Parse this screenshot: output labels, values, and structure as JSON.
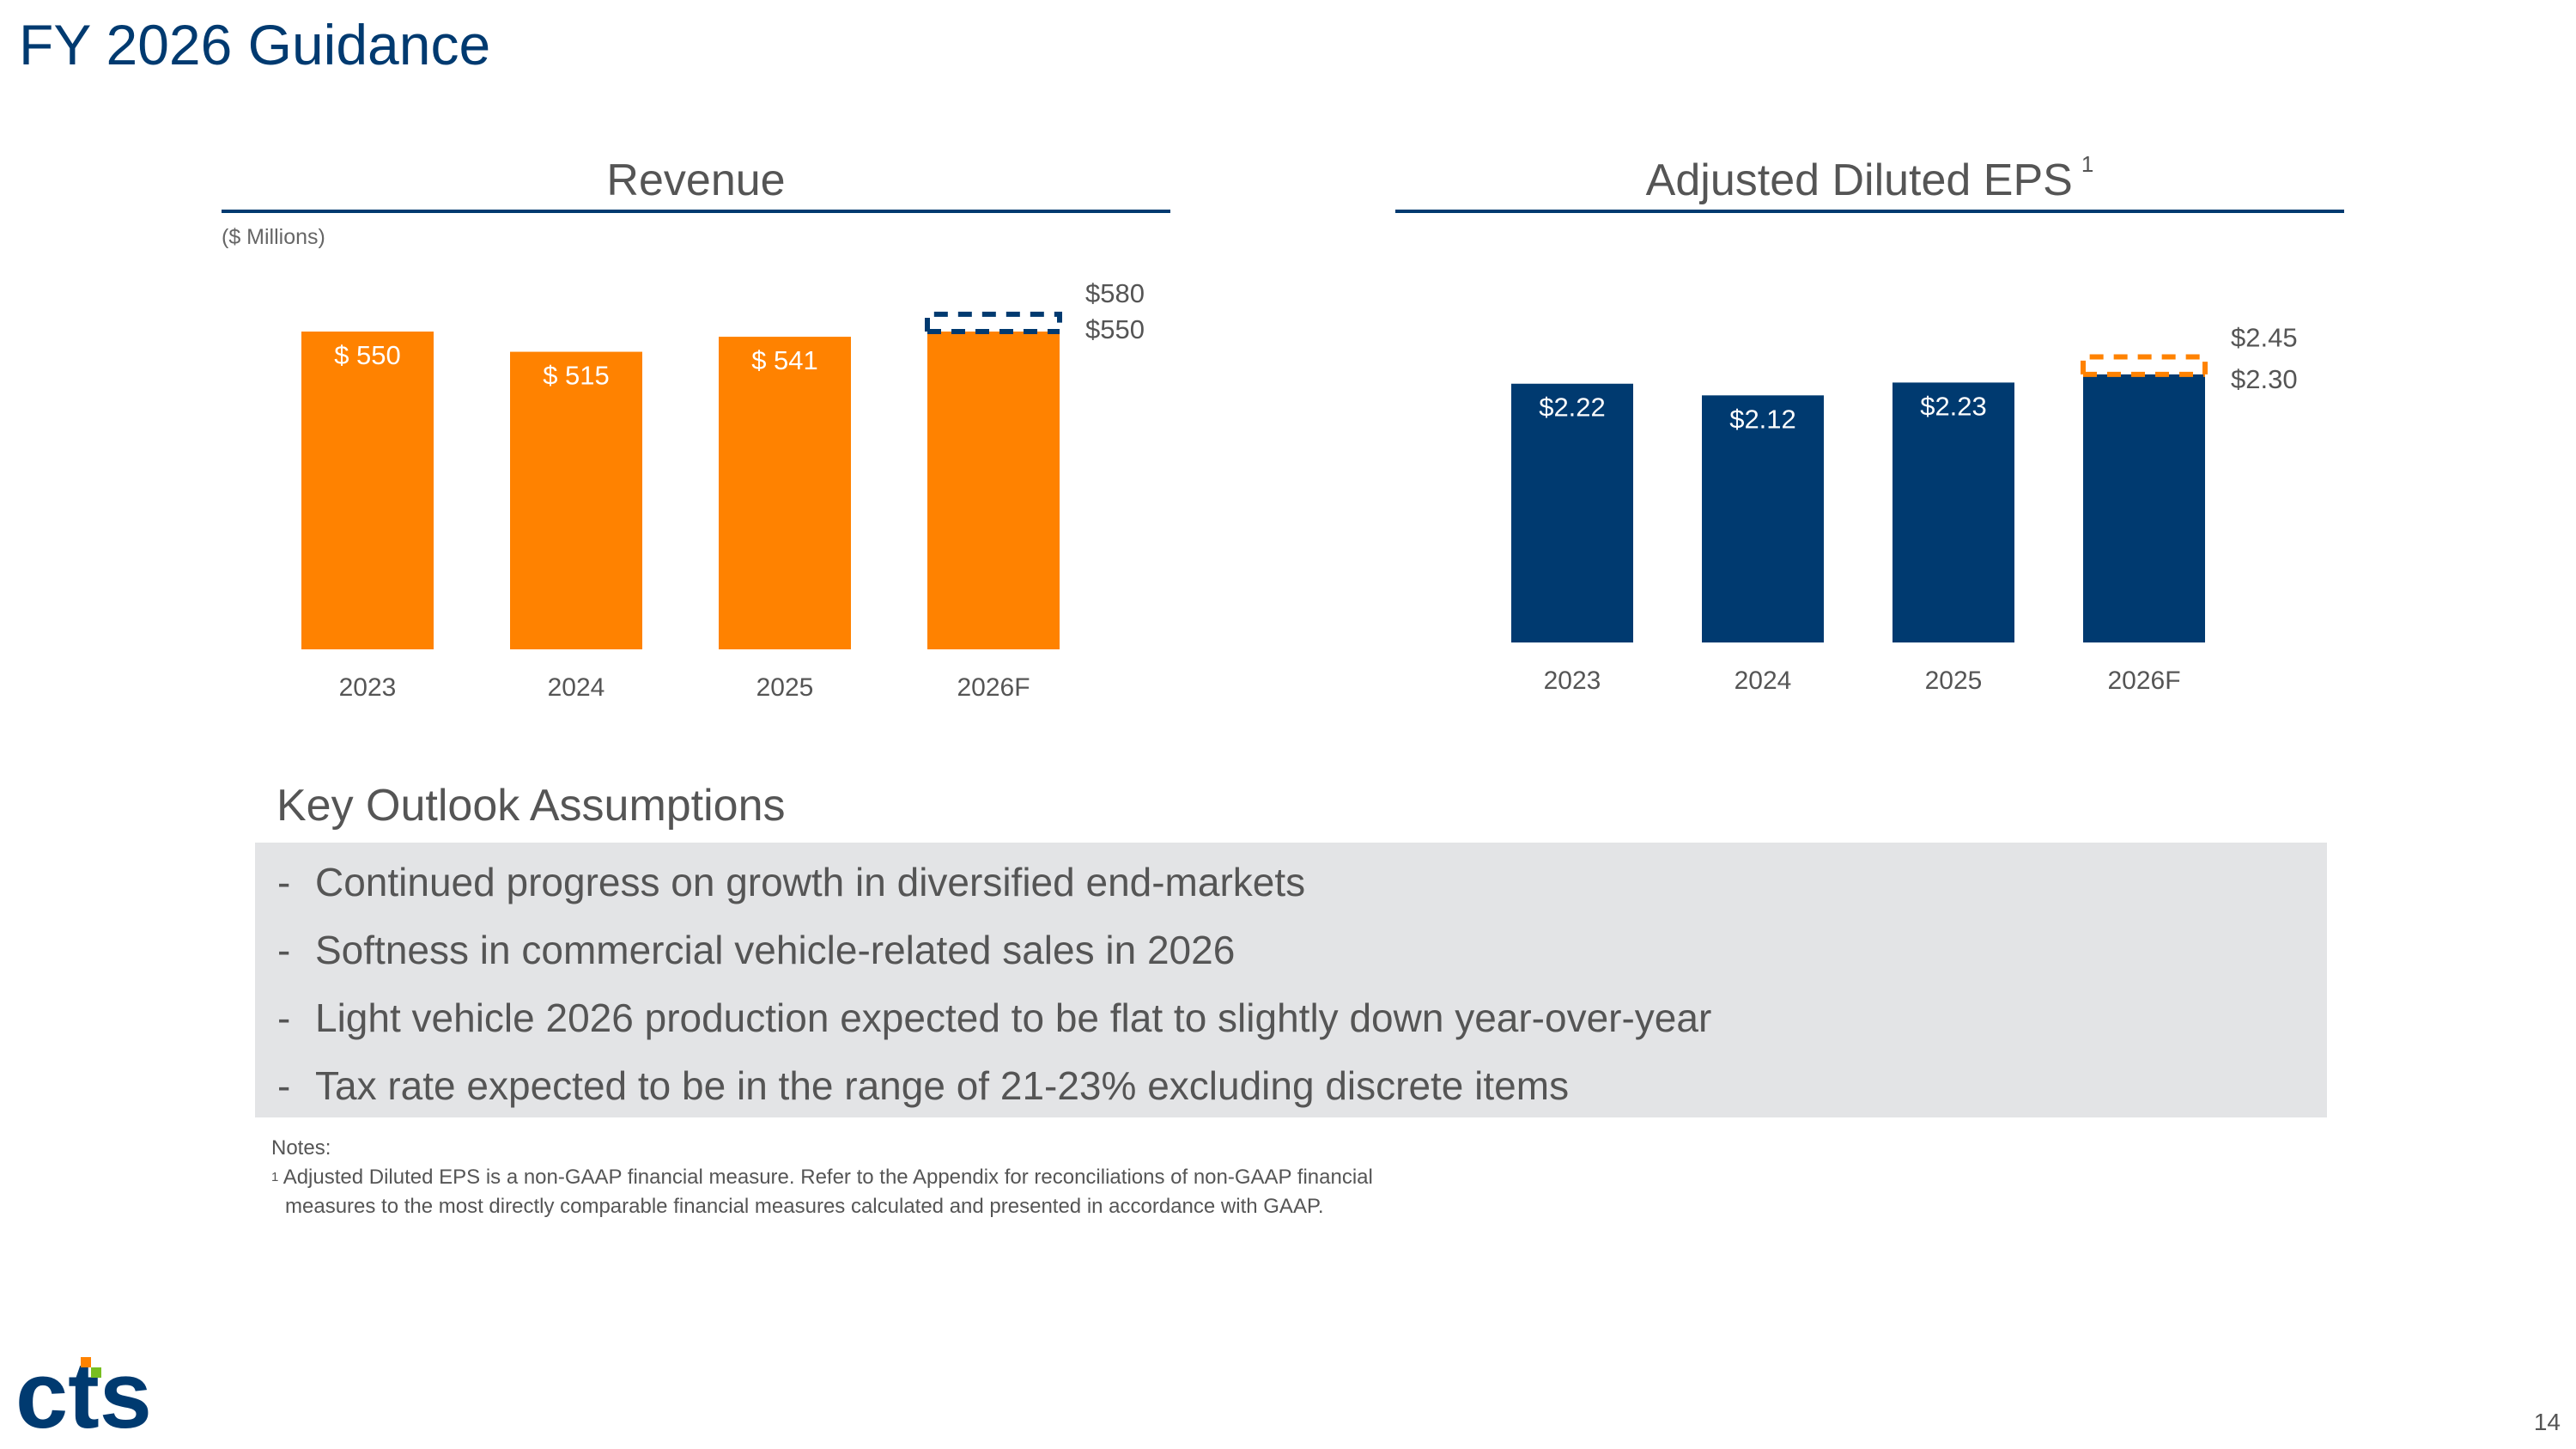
{
  "slide": {
    "title": "FY 2026 Guidance",
    "page_number": "14"
  },
  "revenue_chart": {
    "title": "Revenue",
    "units": "($ Millions)"
  },
  "eps_chart": {
    "title": "Adjusted Diluted EPS",
    "footnote_marker": "1"
  },
  "colors": {
    "title_blue": "#003a70",
    "revenue_orange": "#ff8200",
    "eps_navy": "#003a70",
    "guidance_box_revenue": "#003a70",
    "guidance_box_eps": "#ff8200",
    "assumptions_bg": "#e3e4e6"
  },
  "chart_data": [
    {
      "type": "bar",
      "title": "Revenue",
      "ylabel": "($ Millions)",
      "categories": [
        "2023",
        "2024",
        "2025",
        "2026F"
      ],
      "values": [
        550,
        515,
        541,
        550
      ],
      "value_labels": [
        "$ 550",
        "$ 515",
        "$ 541",
        ""
      ],
      "guidance_range": {
        "category": "2026F",
        "low": 550,
        "high": 580,
        "low_label": "$550",
        "high_label": "$580"
      },
      "color": "#ff8200"
    },
    {
      "type": "bar",
      "title": "Adjusted Diluted EPS",
      "categories": [
        "2023",
        "2024",
        "2025",
        "2026F"
      ],
      "values": [
        2.22,
        2.12,
        2.23,
        2.3
      ],
      "value_labels": [
        "$2.22",
        "$2.12",
        "$2.23",
        ""
      ],
      "guidance_range": {
        "category": "2026F",
        "low": 2.3,
        "high": 2.45,
        "low_label": "$2.30",
        "high_label": "$2.45"
      },
      "color": "#003a70"
    }
  ],
  "assumptions": {
    "heading": "Key Outlook Assumptions",
    "bullet": "-",
    "items": [
      "Continued progress on growth in diversified end-markets",
      "Softness in commercial vehicle-related sales in 2026",
      "Light vehicle 2026 production expected to be flat to slightly down year-over-year",
      "Tax rate expected to be in the range of 21-23% excluding discrete items"
    ]
  },
  "notes": {
    "heading": "Notes:",
    "marker": "1",
    "line1": "Adjusted Diluted EPS is a non-GAAP financial measure. Refer to the Appendix for reconciliations of non-GAAP financial",
    "line2": "measures to the most directly comparable financial measures calculated and presented in accordance with GAAP."
  },
  "logo": {
    "text": "cts",
    "icon": "cts-logo-icon",
    "accent_orange": "#ff8200",
    "accent_green": "#78be20",
    "brand_navy": "#003a70"
  }
}
